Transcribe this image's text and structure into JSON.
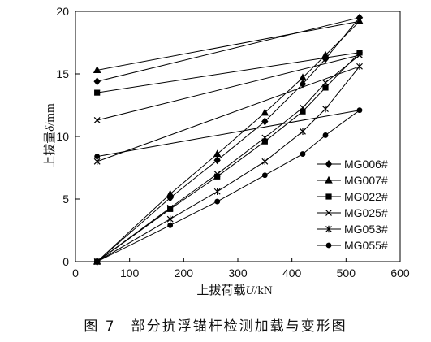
{
  "caption": "图 7　部分抗浮锚杆检测加载与变形图",
  "chart_data": {
    "type": "line",
    "xlabel_prefix": "上拔荷载",
    "xlabel_var": "U",
    "xlabel_unit": "/kN",
    "ylabel_prefix": "上拔量",
    "ylabel_var": "δ",
    "ylabel_unit": "/mm",
    "xlim": [
      0,
      600
    ],
    "ylim": [
      0,
      20
    ],
    "xticks": [
      0,
      100,
      200,
      300,
      400,
      500,
      600
    ],
    "yticks": [
      0,
      5,
      10,
      15,
      20
    ],
    "grid": false,
    "legend_position": "right",
    "series": [
      {
        "name": "MG006#",
        "marker": "diamond",
        "load": [
          [
            40,
            0
          ],
          [
            175,
            5.1
          ],
          [
            262,
            8.1
          ],
          [
            350,
            11.2
          ],
          [
            420,
            14.2
          ],
          [
            462,
            16.2
          ],
          [
            525,
            19.5
          ]
        ],
        "unload": [
          [
            525,
            19.5
          ],
          [
            40,
            14.4
          ]
        ]
      },
      {
        "name": "MG007#",
        "marker": "triangle",
        "load": [
          [
            40,
            0
          ],
          [
            175,
            5.4
          ],
          [
            262,
            8.6
          ],
          [
            350,
            11.9
          ],
          [
            420,
            14.7
          ],
          [
            462,
            16.5
          ],
          [
            525,
            19.2
          ]
        ],
        "unload": [
          [
            525,
            19.2
          ],
          [
            40,
            15.3
          ]
        ]
      },
      {
        "name": "MG022#",
        "marker": "square",
        "load": [
          [
            40,
            0
          ],
          [
            175,
            4.2
          ],
          [
            262,
            6.8
          ],
          [
            350,
            9.6
          ],
          [
            420,
            12.0
          ],
          [
            462,
            13.9
          ],
          [
            525,
            16.7
          ]
        ],
        "unload": [
          [
            525,
            16.7
          ],
          [
            40,
            13.5
          ]
        ]
      },
      {
        "name": "MG025#",
        "marker": "x",
        "load": [
          [
            40,
            0
          ],
          [
            175,
            4.3
          ],
          [
            262,
            7.0
          ],
          [
            350,
            9.9
          ],
          [
            420,
            12.3
          ],
          [
            462,
            14.3
          ],
          [
            525,
            16.5
          ]
        ],
        "unload": [
          [
            525,
            16.5
          ],
          [
            40,
            11.3
          ]
        ]
      },
      {
        "name": "MG053#",
        "marker": "star",
        "load": [
          [
            40,
            0
          ],
          [
            175,
            3.4
          ],
          [
            262,
            5.6
          ],
          [
            350,
            8.0
          ],
          [
            420,
            10.4
          ],
          [
            462,
            12.2
          ],
          [
            525,
            15.6
          ]
        ],
        "unload": [
          [
            525,
            15.6
          ],
          [
            40,
            8.0
          ]
        ]
      },
      {
        "name": "MG055#",
        "marker": "circle",
        "load": [
          [
            40,
            0
          ],
          [
            175,
            2.9
          ],
          [
            262,
            4.8
          ],
          [
            350,
            6.9
          ],
          [
            420,
            8.6
          ],
          [
            462,
            10.1
          ],
          [
            525,
            12.1
          ]
        ],
        "unload": [
          [
            525,
            12.1
          ],
          [
            40,
            8.4
          ]
        ]
      }
    ]
  }
}
